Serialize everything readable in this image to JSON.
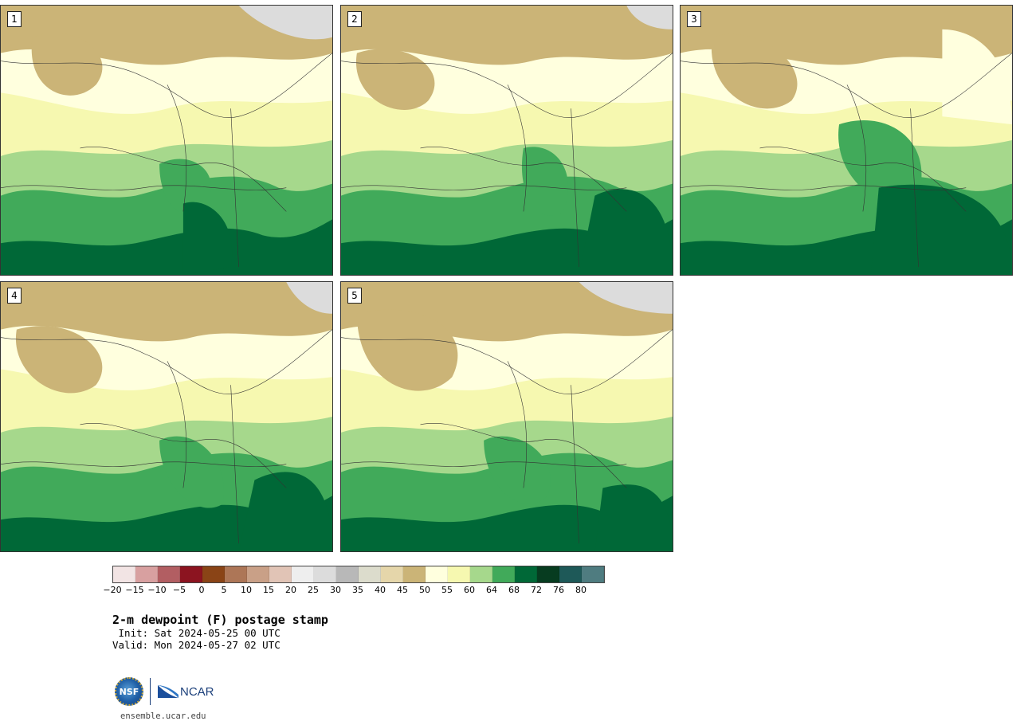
{
  "panels": [
    {
      "id": "1",
      "label": "1"
    },
    {
      "id": "2",
      "label": "2"
    },
    {
      "id": "3",
      "label": "3"
    },
    {
      "id": "4",
      "label": "4"
    },
    {
      "id": "5",
      "label": "5"
    }
  ],
  "colorbar": {
    "colors": [
      "#f2e4e4",
      "#d8a0a0",
      "#b25e62",
      "#8c1420",
      "#8a4416",
      "#ad7657",
      "#c9a087",
      "#e1c4b6",
      "#eeeeee",
      "#dcdcdc",
      "#b8b8b8",
      "#dcdccc",
      "#e5d6aa",
      "#cbb477",
      "#ffffde",
      "#f6f8b0",
      "#a6d88c",
      "#41aa5a",
      "#006837",
      "#073c20",
      "#1e5958",
      "#4f7c80"
    ],
    "ticks": [
      "−20",
      "−15",
      "−10",
      "−5",
      "0",
      "5",
      "10",
      "15",
      "20",
      "25",
      "30",
      "35",
      "40",
      "45",
      "50",
      "55",
      "60",
      "64",
      "68",
      "72",
      "76",
      "80"
    ]
  },
  "title": "2-m dewpoint (F) postage stamp",
  "init": " Init: Sat 2024-05-25 00 UTC",
  "valid": "Valid: Mon 2024-05-27 02 UTC",
  "logos": {
    "nsf": "NSF",
    "ncar": "NCAR"
  },
  "url": "ensemble.ucar.edu"
}
